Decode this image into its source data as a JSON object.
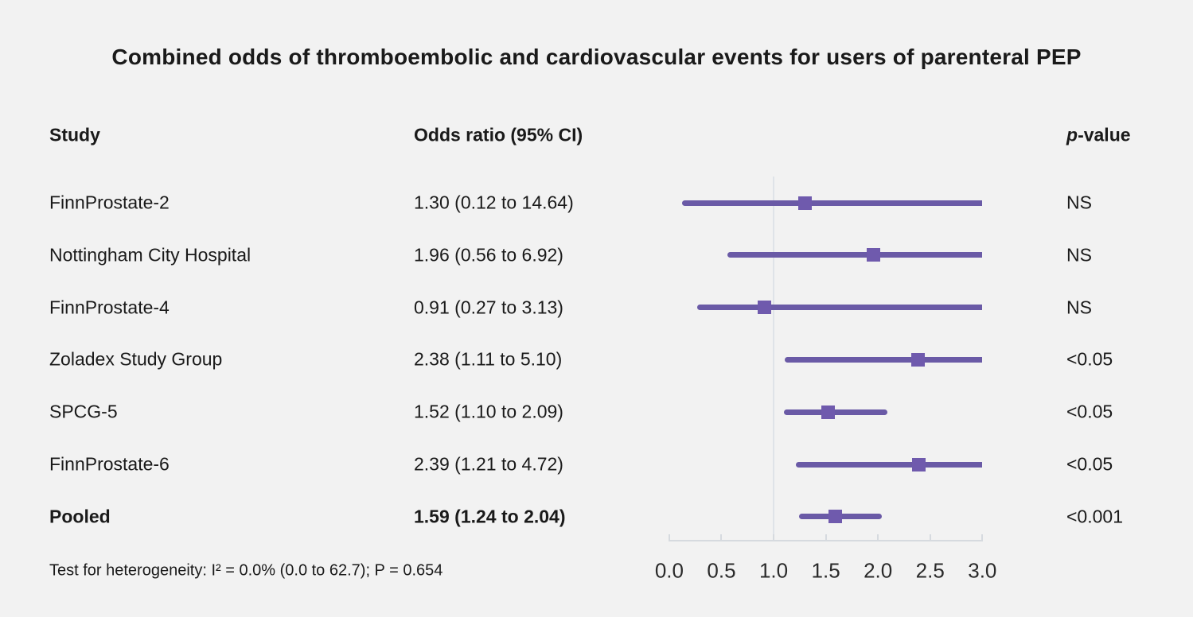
{
  "title": "Combined odds of thromboembolic and cardiovascular events for users of parenteral PEP",
  "columns": {
    "study": "Study",
    "odds_ratio": "Odds ratio (95% CI)",
    "p_prefix": "p",
    "p_suffix": "-value"
  },
  "footer": "Test for heterogeneity: I² = 0.0% (0.0 to 62.7); P = 0.654",
  "chart_data": {
    "type": "forest",
    "title": "Combined odds of thromboembolic and cardiovascular events for users of parenteral PEP",
    "rows": [
      {
        "study": "FinnProstate-2",
        "or_text": "1.30 (0.12 to 14.64)",
        "estimate": 1.3,
        "ci_low": 0.12,
        "ci_high": 14.64,
        "p_value": "NS",
        "bold": false
      },
      {
        "study": "Nottingham City Hospital",
        "or_text": "1.96 (0.56 to 6.92)",
        "estimate": 1.96,
        "ci_low": 0.56,
        "ci_high": 6.92,
        "p_value": "NS",
        "bold": false
      },
      {
        "study": "FinnProstate-4",
        "or_text": "0.91 (0.27 to 3.13)",
        "estimate": 0.91,
        "ci_low": 0.27,
        "ci_high": 3.13,
        "p_value": "NS",
        "bold": false
      },
      {
        "study": "Zoladex Study Group",
        "or_text": "2.38 (1.11 to 5.10)",
        "estimate": 2.38,
        "ci_low": 1.11,
        "ci_high": 5.1,
        "p_value": "<0.05",
        "bold": false
      },
      {
        "study": "SPCG-5",
        "or_text": "1.52 (1.10 to 2.09)",
        "estimate": 1.52,
        "ci_low": 1.1,
        "ci_high": 2.09,
        "p_value": "<0.05",
        "bold": false
      },
      {
        "study": "FinnProstate-6",
        "or_text": "2.39 (1.21 to 4.72)",
        "estimate": 2.39,
        "ci_low": 1.21,
        "ci_high": 4.72,
        "p_value": "<0.05",
        "bold": false
      },
      {
        "study": "Pooled",
        "or_text": "1.59 (1.24 to 2.04)",
        "estimate": 1.59,
        "ci_low": 1.24,
        "ci_high": 2.04,
        "p_value": "<0.001",
        "bold": true
      }
    ],
    "axis": {
      "min": 0.0,
      "max": 3.0,
      "tick_labels": [
        "0.0",
        "0.5",
        "1.0",
        "1.5",
        "2.0",
        "2.5",
        "3.0"
      ],
      "reference_line": 1.0,
      "grid": false,
      "legend": "none"
    },
    "colors": {
      "ci_line": "#6a5aa6",
      "marker": "#6f5aad",
      "axis_line": "#d6dadf",
      "reference_line": "#dfe3e8",
      "text": "#1a1a1a",
      "background": "#f2f2f2"
    }
  }
}
